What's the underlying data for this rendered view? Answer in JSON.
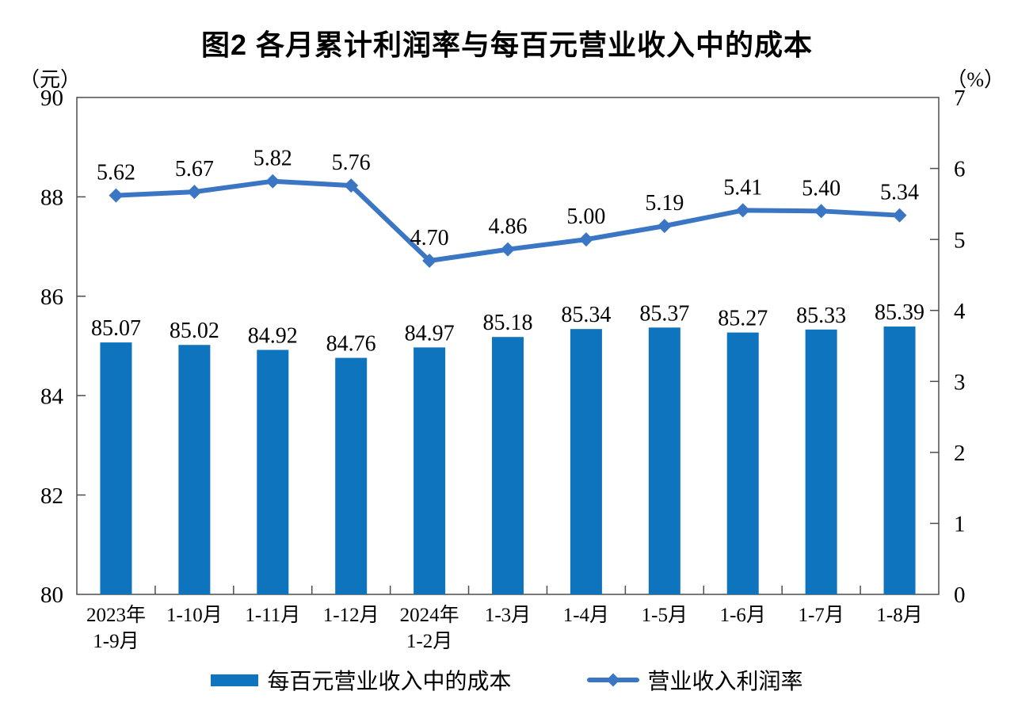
{
  "title": "图2 各月累计利润率与每百元营业收入中的成本",
  "left_axis_unit": "（元）",
  "right_axis_unit": "（%）",
  "legend": {
    "bar_label": "每百元营业收入中的成本",
    "line_label": "营业收入利润率"
  },
  "colors": {
    "bar": "#0E74BE",
    "line": "#3A76C4",
    "axis_line": "#4D4D4D",
    "label_text": "#000000"
  },
  "chart_data": {
    "type": "combo-bar-line",
    "title": "图2 各月累计利润率与每百元营业收入中的成本",
    "categories": [
      "2023年\n1-9月",
      "1-10月",
      "1-11月",
      "1-12月",
      "2024年\n1-2月",
      "1-3月",
      "1-4月",
      "1-5月",
      "1-6月",
      "1-7月",
      "1-8月"
    ],
    "series": [
      {
        "name": "每百元营业收入中的成本",
        "type": "bar",
        "axis": "left",
        "values": [
          85.07,
          85.02,
          84.92,
          84.76,
          84.97,
          85.18,
          85.34,
          85.37,
          85.27,
          85.33,
          85.39
        ]
      },
      {
        "name": "营业收入利润率",
        "type": "line",
        "axis": "right",
        "values": [
          5.62,
          5.67,
          5.82,
          5.76,
          4.7,
          4.86,
          5.0,
          5.19,
          5.41,
          5.4,
          5.34
        ]
      }
    ],
    "left_axis": {
      "unit": "（元）",
      "min": 80,
      "max": 90,
      "step": 2,
      "ticks": [
        "80",
        "82",
        "84",
        "86",
        "88",
        "90"
      ]
    },
    "right_axis": {
      "unit": "（%）",
      "min": 0,
      "max": 7,
      "step": 1,
      "ticks": [
        "0",
        "1",
        "2",
        "3",
        "4",
        "5",
        "6",
        "7"
      ]
    },
    "grid": false,
    "legend_position": "bottom",
    "data_label_decimals": 2
  }
}
